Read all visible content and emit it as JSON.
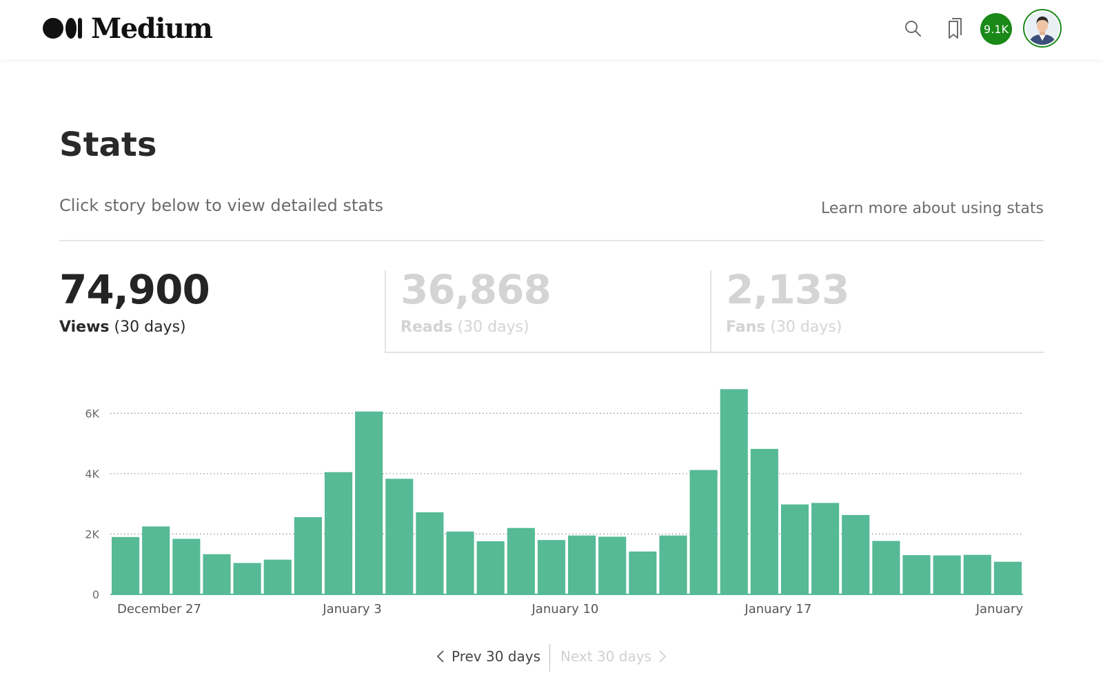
{
  "header": {
    "brand": "Medium",
    "notification_count": "9.1K",
    "icons": {
      "search": "search-icon",
      "bookmarks": "bookmarks-icon",
      "avatar": "user-avatar"
    },
    "accent_color": "#1a8917"
  },
  "page": {
    "title": "Stats",
    "subtitle": "Click story below to view detailed stats",
    "learn_more": "Learn more about using stats"
  },
  "stats": [
    {
      "value": "74,900",
      "label": "Views",
      "period": "(30 days)",
      "active": true
    },
    {
      "value": "36,868",
      "label": "Reads",
      "period": "(30 days)",
      "active": false
    },
    {
      "value": "2,133",
      "label": "Fans",
      "period": "(30 days)",
      "active": false
    }
  ],
  "pagination": {
    "prev": "Prev 30 days",
    "next": "Next 30 days"
  },
  "chart_data": {
    "type": "bar",
    "bar_color": "#55ba95",
    "y_ticks": [
      {
        "value": 0,
        "label": "0"
      },
      {
        "value": 2000,
        "label": "2K"
      },
      {
        "value": 4000,
        "label": "4K"
      },
      {
        "value": 6000,
        "label": "6K"
      }
    ],
    "ylim": [
      0,
      6900
    ],
    "grid": "dotted-horizontal",
    "x_tick_labels": [
      {
        "index": 0,
        "label": "December 27"
      },
      {
        "index": 7,
        "label": "January 3"
      },
      {
        "index": 14,
        "label": "January 10"
      },
      {
        "index": 21,
        "label": "January 17"
      },
      {
        "index": 28,
        "label": "January"
      }
    ],
    "values": [
      1900,
      2250,
      1840,
      1330,
      1040,
      1150,
      2560,
      4050,
      6060,
      3830,
      2720,
      2080,
      1760,
      2200,
      1800,
      1950,
      1910,
      1420,
      1950,
      4120,
      6800,
      4820,
      2980,
      3030,
      2630,
      1770,
      1300,
      1290,
      1310,
      1080
    ]
  }
}
